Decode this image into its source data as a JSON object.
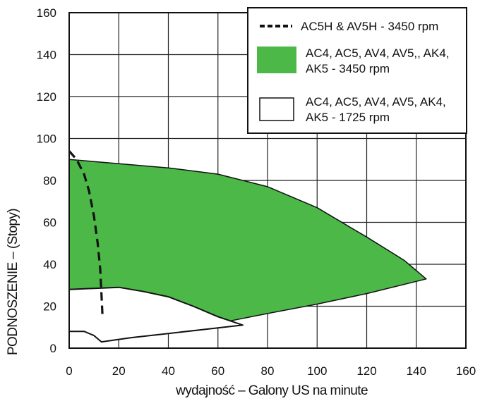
{
  "chart_data": {
    "type": "area",
    "title": "",
    "xlabel": "wydajność – Galony US na minute",
    "ylabel": "PODNOSZENIE – (Stopy)",
    "xlim": [
      0,
      160
    ],
    "ylim": [
      0,
      160
    ],
    "xticks": [
      0,
      20,
      40,
      60,
      80,
      100,
      120,
      140,
      160
    ],
    "yticks": [
      0,
      20,
      40,
      60,
      80,
      100,
      120,
      140,
      160
    ],
    "grid": true,
    "legend_position": "top-right",
    "colors": {
      "green_fill": "#4cb848",
      "white_fill": "#ffffff",
      "line": "#111111"
    },
    "series": [
      {
        "name": "AC4, AC5, AV4, AV5,, AK4, AK5 - 3450 rpm",
        "style": "green-area",
        "upper": [
          [
            0,
            90
          ],
          [
            10,
            89
          ],
          [
            20,
            88
          ],
          [
            40,
            86
          ],
          [
            60,
            83
          ],
          [
            80,
            77
          ],
          [
            100,
            67
          ],
          [
            120,
            53
          ],
          [
            135,
            42
          ],
          [
            144,
            33
          ]
        ],
        "lower": [
          [
            144,
            33
          ],
          [
            120,
            26
          ],
          [
            100,
            21
          ],
          [
            80,
            16.5
          ],
          [
            65,
            13
          ],
          [
            60,
            15
          ],
          [
            50,
            20
          ],
          [
            40,
            24.5
          ],
          [
            30,
            27
          ],
          [
            20,
            29
          ],
          [
            10,
            28.5
          ],
          [
            0,
            28
          ]
        ]
      },
      {
        "name": "AC4, AC5, AV4, AV5, AK4, AK5 - 1725 rpm",
        "style": "white-area",
        "upper": [
          [
            0,
            28
          ],
          [
            10,
            28.5
          ],
          [
            20,
            29
          ],
          [
            30,
            27
          ],
          [
            40,
            24.5
          ],
          [
            50,
            20
          ],
          [
            60,
            15
          ],
          [
            65,
            13
          ],
          [
            70,
            11
          ]
        ],
        "lower": [
          [
            70,
            11
          ],
          [
            55,
            9
          ],
          [
            40,
            7
          ],
          [
            25,
            5
          ],
          [
            13,
            3
          ],
          [
            10,
            6
          ],
          [
            6,
            8
          ],
          [
            0,
            8
          ]
        ]
      },
      {
        "name": "AC5H & AV5H - 3450 rpm",
        "style": "dashed-line",
        "points": [
          [
            0,
            94
          ],
          [
            3,
            90
          ],
          [
            6,
            83
          ],
          [
            8,
            75
          ],
          [
            10,
            63
          ],
          [
            11.5,
            50
          ],
          [
            12.5,
            38
          ],
          [
            13,
            26
          ],
          [
            13.5,
            14
          ]
        ]
      }
    ]
  }
}
